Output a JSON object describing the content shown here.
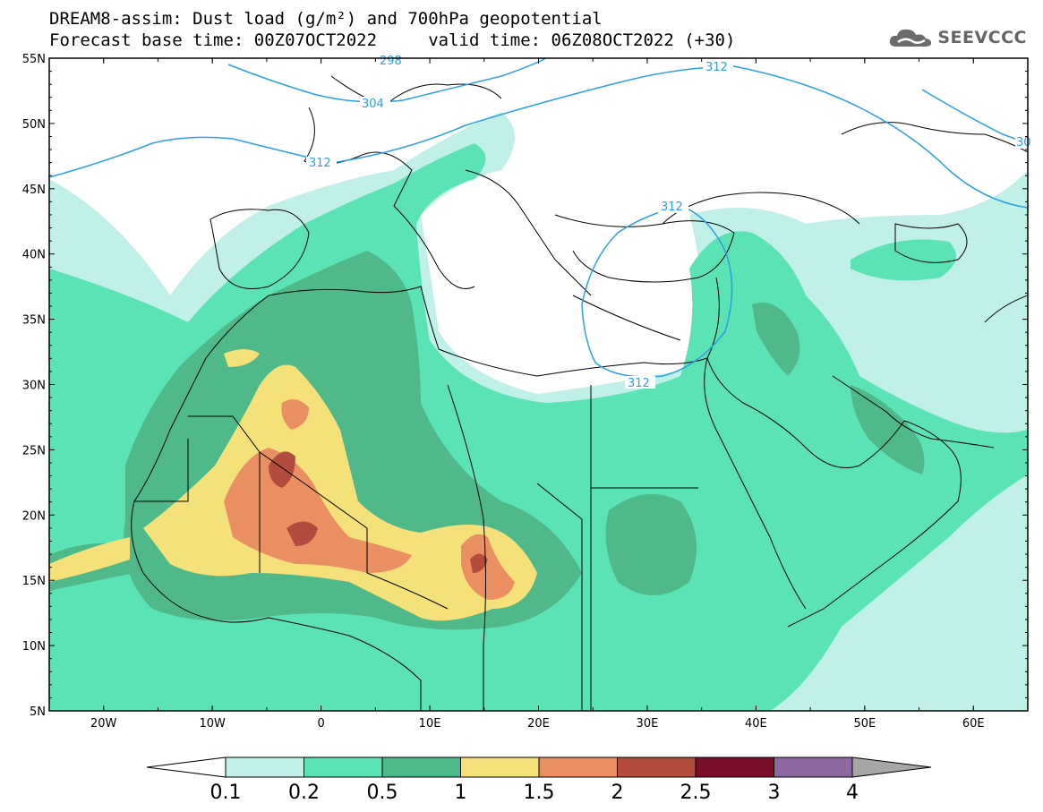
{
  "header": {
    "line1": "DREAM8-assim: Dust load (g/m²) and 700hPa geopotential",
    "line2": "Forecast base time: 00Z07OCT2022     valid time: 06Z08OCT2022 (+30)",
    "logo_text": "SEEVCCC",
    "logo_icon": "cloud-icon"
  },
  "map": {
    "lon_range": [
      -25,
      65
    ],
    "lat_range": [
      5,
      55
    ],
    "lat_ticks": [
      "55N",
      "50N",
      "45N",
      "40N",
      "35N",
      "30N",
      "25N",
      "20N",
      "15N",
      "10N",
      "5N"
    ],
    "lon_ticks": [
      "20W",
      "10W",
      "0",
      "10E",
      "20E",
      "30E",
      "40E",
      "50E",
      "60E"
    ],
    "contour_labels": [
      "298",
      "304",
      "312",
      "312",
      "312",
      "312",
      "30"
    ]
  },
  "colorbar": {
    "labels": [
      "0.1",
      "0.2",
      "0.5",
      "1",
      "1.5",
      "2",
      "2.5",
      "3",
      "4"
    ],
    "colors": [
      "#c0f0e8",
      "#5be3b6",
      "#4fb98a",
      "#f5e17a",
      "#ea8f62",
      "#b24c3e",
      "#7a0f2c",
      "#8b68a0",
      "#a6a6a6"
    ]
  }
}
